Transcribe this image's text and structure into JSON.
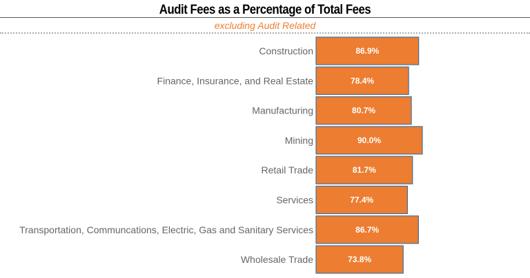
{
  "chart_data": {
    "type": "bar",
    "orientation": "horizontal",
    "title": "Audit Fees as a Percentage of Total Fees",
    "subtitle": "excluding Audit Related",
    "categories": [
      "Construction",
      "Finance, Insurance, and Real Estate",
      "Manufacturing",
      "Mining",
      "Retail Trade",
      "Services",
      "Transportation, Communcations, Electric, Gas and Sanitary Services",
      "Wholesale Trade"
    ],
    "values": [
      86.9,
      78.4,
      80.7,
      90.0,
      81.7,
      77.4,
      86.7,
      73.8
    ],
    "value_labels": [
      "86.9%",
      "78.4%",
      "80.7%",
      "90.0%",
      "81.7%",
      "77.4%",
      "86.7%",
      "73.8%"
    ],
    "xlim": [
      0,
      100
    ],
    "grid": false,
    "colors": {
      "bar": "#ED7D31",
      "bar_border": "#41719C",
      "accent": "#ED7D31"
    }
  }
}
